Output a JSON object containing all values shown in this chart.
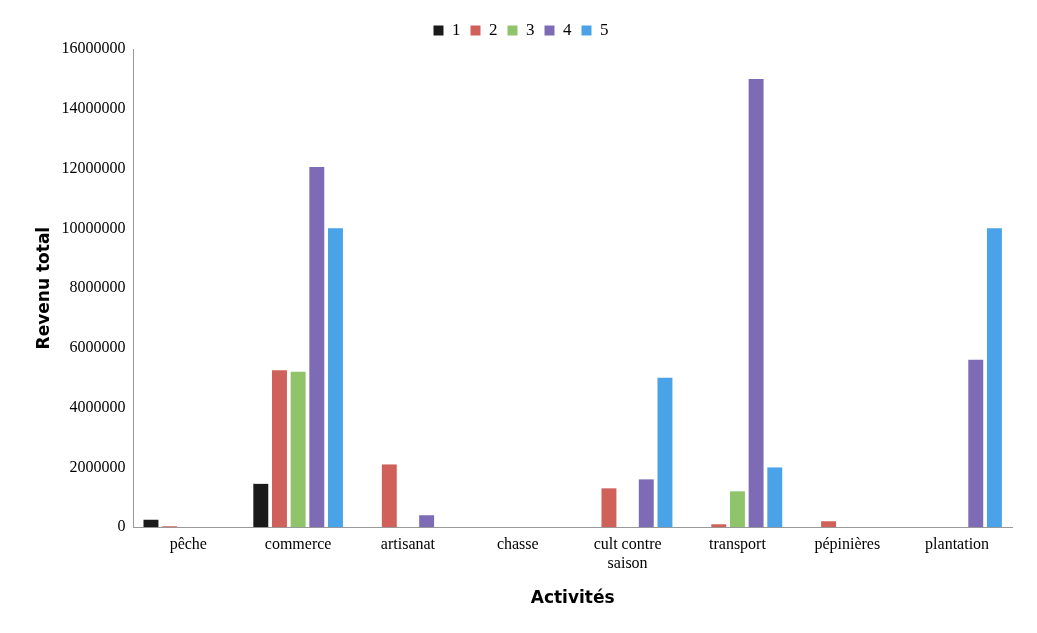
{
  "chart_data": {
    "type": "bar",
    "xlabel": "Activités",
    "ylabel": "Revenu total",
    "categories": [
      "pêche",
      "commerce",
      "artisanat",
      "chasse",
      "cult contre saison",
      "transport",
      "pépinières",
      "plantation"
    ],
    "series": [
      {
        "name": "1",
        "color": "#1a1a1a",
        "values": [
          250000,
          1450000,
          0,
          0,
          0,
          0,
          0,
          0
        ]
      },
      {
        "name": "2",
        "color": "#d0605a",
        "values": [
          30000,
          5250000,
          2100000,
          0,
          1300000,
          100000,
          200000,
          0
        ]
      },
      {
        "name": "3",
        "color": "#8fc46a",
        "values": [
          0,
          5200000,
          0,
          0,
          0,
          1200000,
          0,
          0
        ]
      },
      {
        "name": "4",
        "color": "#7e6bb5",
        "values": [
          0,
          12050000,
          400000,
          0,
          1600000,
          15000000,
          0,
          5600000
        ]
      },
      {
        "name": "5",
        "color": "#4aa3e8",
        "values": [
          0,
          10000000,
          0,
          0,
          5000000,
          2000000,
          0,
          10000000
        ]
      }
    ],
    "ylim": [
      0,
      16000000
    ],
    "yticks": [
      0,
      2000000,
      4000000,
      6000000,
      8000000,
      10000000,
      12000000,
      14000000,
      16000000
    ],
    "grid": false,
    "legend": "top"
  }
}
